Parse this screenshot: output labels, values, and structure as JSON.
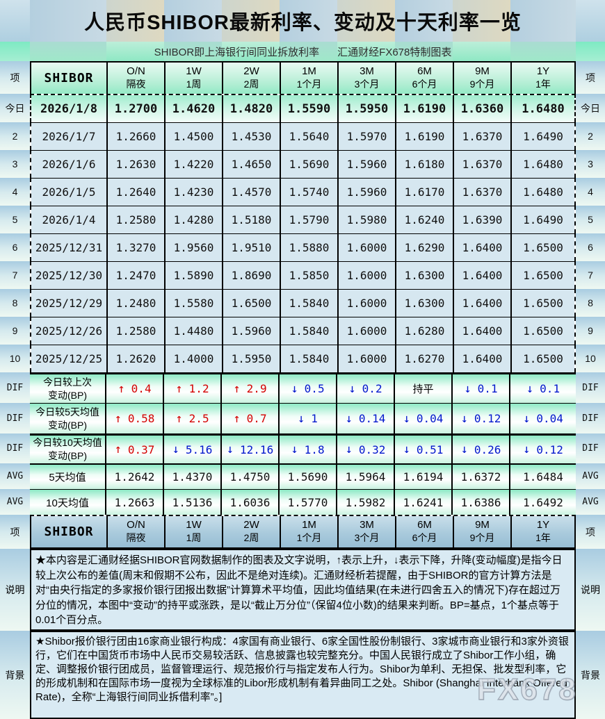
{
  "banner": {
    "title": "人民币SHIBOR最新利率、变动及十天利率一览",
    "subtitle_left": "SHIBOR即上海银行间同业拆放利率",
    "subtitle_right": "汇通财经FX678特制图表"
  },
  "columns": {
    "corner": "项",
    "row_header": "SHIBOR",
    "tenors": [
      {
        "code": "O/N",
        "sub": "隔夜"
      },
      {
        "code": "1W",
        "sub": "1周"
      },
      {
        "code": "2W",
        "sub": "2周"
      },
      {
        "code": "1M",
        "sub": "1个月"
      },
      {
        "code": "3M",
        "sub": "3个月"
      },
      {
        "code": "6M",
        "sub": "6个月"
      },
      {
        "code": "9M",
        "sub": "9个月"
      },
      {
        "code": "1Y",
        "sub": "1年"
      }
    ]
  },
  "chart_data": {
    "type": "table",
    "title": "人民币SHIBOR最新利率、变动及十天利率一览",
    "columns": [
      "O/N 隔夜",
      "1W 1周",
      "2W 2周",
      "1M 1个月",
      "3M 3个月",
      "6M 6个月",
      "9M 9个月",
      "1Y 1年"
    ],
    "daily_rates": [
      {
        "edge": "今日",
        "today": true,
        "date": "2026/1/8",
        "values": [
          "1.2700",
          "1.4620",
          "1.4820",
          "1.5590",
          "1.5950",
          "1.6190",
          "1.6360",
          "1.6480"
        ]
      },
      {
        "edge": "2",
        "today": false,
        "date": "2026/1/7",
        "values": [
          "1.2660",
          "1.4500",
          "1.4530",
          "1.5640",
          "1.5970",
          "1.6190",
          "1.6370",
          "1.6490"
        ]
      },
      {
        "edge": "3",
        "today": false,
        "date": "2026/1/6",
        "values": [
          "1.2630",
          "1.4220",
          "1.4650",
          "1.5690",
          "1.5960",
          "1.6180",
          "1.6370",
          "1.6480"
        ]
      },
      {
        "edge": "4",
        "today": false,
        "date": "2026/1/5",
        "values": [
          "1.2640",
          "1.4230",
          "1.4570",
          "1.5740",
          "1.5960",
          "1.6170",
          "1.6370",
          "1.6480"
        ]
      },
      {
        "edge": "5",
        "today": false,
        "date": "2026/1/4",
        "values": [
          "1.2580",
          "1.4280",
          "1.5180",
          "1.5790",
          "1.5980",
          "1.6240",
          "1.6390",
          "1.6490"
        ]
      },
      {
        "edge": "6",
        "today": false,
        "date": "2025/12/31",
        "values": [
          "1.3270",
          "1.9560",
          "1.9510",
          "1.5880",
          "1.6000",
          "1.6290",
          "1.6400",
          "1.6500"
        ]
      },
      {
        "edge": "7",
        "today": false,
        "date": "2025/12/30",
        "values": [
          "1.2470",
          "1.5890",
          "1.8690",
          "1.5850",
          "1.6000",
          "1.6300",
          "1.6400",
          "1.6500"
        ]
      },
      {
        "edge": "8",
        "today": false,
        "date": "2025/12/29",
        "values": [
          "1.2480",
          "1.5580",
          "1.6500",
          "1.5840",
          "1.6000",
          "1.6300",
          "1.6400",
          "1.6500"
        ]
      },
      {
        "edge": "9",
        "today": false,
        "date": "2025/12/26",
        "values": [
          "1.2580",
          "1.4480",
          "1.5960",
          "1.5840",
          "1.6000",
          "1.6280",
          "1.6400",
          "1.6500"
        ]
      },
      {
        "edge": "10",
        "today": false,
        "date": "2025/12/25",
        "values": [
          "1.2620",
          "1.4000",
          "1.5950",
          "1.5840",
          "1.6000",
          "1.6270",
          "1.6400",
          "1.6500"
        ]
      }
    ],
    "changes_bp": [
      {
        "edge": "DIF",
        "label1": "今日较上次",
        "label2": "变动(BP)",
        "cells": [
          {
            "dir": "up",
            "value": "0.4"
          },
          {
            "dir": "up",
            "value": "1.2"
          },
          {
            "dir": "up",
            "value": "2.9"
          },
          {
            "dir": "down",
            "value": "0.5"
          },
          {
            "dir": "down",
            "value": "0.2"
          },
          {
            "dir": "flat",
            "value": "持平"
          },
          {
            "dir": "down",
            "value": "0.1"
          },
          {
            "dir": "down",
            "value": "0.1"
          }
        ]
      },
      {
        "edge": "DIF",
        "label1": "今日较5天均值",
        "label2": "变动(BP)",
        "cells": [
          {
            "dir": "up",
            "value": "0.58"
          },
          {
            "dir": "up",
            "value": "2.5"
          },
          {
            "dir": "up",
            "value": "0.7"
          },
          {
            "dir": "down",
            "value": "1"
          },
          {
            "dir": "down",
            "value": "0.14"
          },
          {
            "dir": "down",
            "value": "0.04"
          },
          {
            "dir": "down",
            "value": "0.12"
          },
          {
            "dir": "down",
            "value": "0.04"
          }
        ]
      },
      {
        "edge": "DIF",
        "label1": "今日较10天均值",
        "label2": "变动(BP)",
        "cells": [
          {
            "dir": "up",
            "value": "0.37"
          },
          {
            "dir": "down",
            "value": "5.16"
          },
          {
            "dir": "down",
            "value": "12.16"
          },
          {
            "dir": "down",
            "value": "1.8"
          },
          {
            "dir": "down",
            "value": "0.32"
          },
          {
            "dir": "down",
            "value": "0.51"
          },
          {
            "dir": "down",
            "value": "0.26"
          },
          {
            "dir": "down",
            "value": "0.12"
          }
        ]
      }
    ],
    "averages": [
      {
        "edge": "AVG",
        "label": "5天均值",
        "values": [
          "1.2642",
          "1.4370",
          "1.4750",
          "1.5690",
          "1.5964",
          "1.6194",
          "1.6372",
          "1.6484"
        ]
      },
      {
        "edge": "AVG",
        "label": "10天均值",
        "values": [
          "1.2663",
          "1.5136",
          "1.6036",
          "1.5770",
          "1.5982",
          "1.6241",
          "1.6386",
          "1.6492"
        ]
      }
    ]
  },
  "notes": {
    "shuoming_label": "说明",
    "shuoming_text": "★本内容是汇通财经据SHIBOR官网数据制作的图表及文字说明，↑表示上升，↓表示下降，升降(变动幅度)是指今日较上次公布的差值(周末和假期不公布，因此不是绝对连续)。汇通财经析若提醒，由于SHIBOR的官方计算方法是对“由央行指定的多家报价银行团报出数据”计算算术平均值，因此均值结果(在未进行四舍五入的情况下)存在超过万分位的情况，本图中“变动”的持平或涨跌，是以“截止万分位”（保留4位小数)的结果来判断。BP=基点，1个基点等于0.01个百分点。",
    "beijing_label": "背景",
    "beijing_text": "★Shibor报价银行团由16家商业银行构成：4家国有商业银行、6家全国性股份制银行、3家城市商业银行和3家外资银行，它们在中国货币市场中人民币交易较活跃、信息披露也较完整充分。中国人民银行成立了Shibor工作小组，确定、调整报价银行团成员，监督管理运行、规范报价行与指定发布人行为。Shibor为单利、无担保、批发型利率，它的形成机制和在国际市场一度视为全球标准的Libor形成机制有着异曲同工之处。Shibor (Shanghai Interbank Offered Rate)，全称“上海银行间同业拆借利率”。]"
  },
  "watermark": "FX678",
  "colors": {
    "up": "#d40000",
    "down": "#0016cc",
    "accent_mint": "#8de9c5",
    "row_blue": "#d6e7f0"
  }
}
